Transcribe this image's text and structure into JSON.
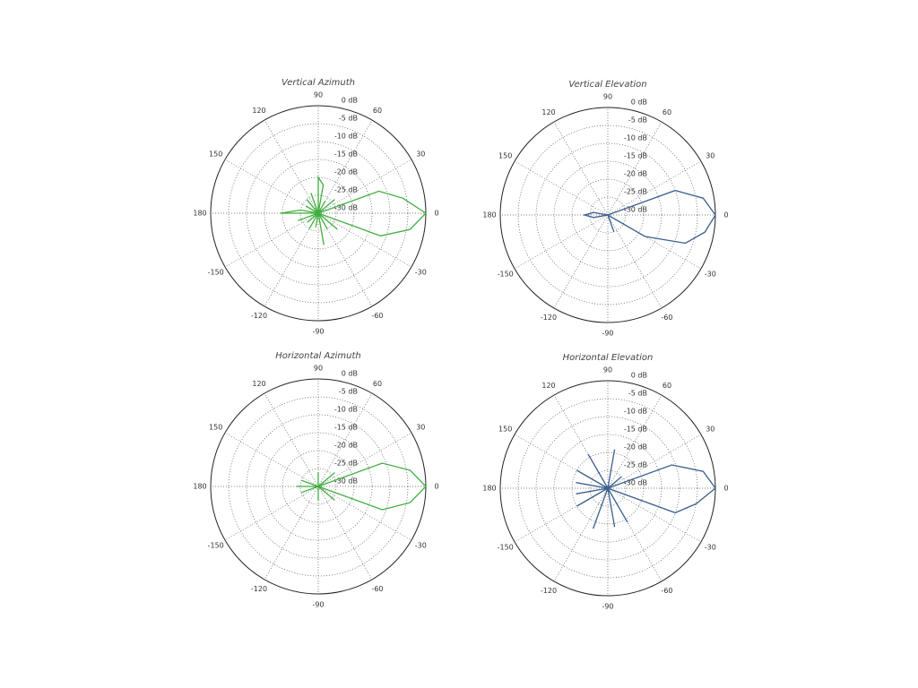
{
  "chart_data": [
    {
      "type": "polar",
      "title": "Vertical Azimuth",
      "color": "#3fae3f",
      "rlim": [
        -30,
        0
      ],
      "rticks": [
        {
          "value": 0,
          "label": "0 dB"
        },
        {
          "value": -5,
          "label": "-5 dB"
        },
        {
          "value": -10,
          "label": "-10 dB"
        },
        {
          "value": -15,
          "label": "-15 dB"
        },
        {
          "value": -20,
          "label": "-20 dB"
        },
        {
          "value": -25,
          "label": "-25 dB"
        },
        {
          "value": -30,
          "label": "-30 dB"
        }
      ],
      "thetaticks": [
        0,
        30,
        60,
        90,
        120,
        150,
        180,
        -150,
        -120,
        -90,
        -60,
        -30
      ],
      "theta": [
        -180,
        -170,
        -160,
        -150,
        -140,
        -130,
        -120,
        -110,
        -100,
        -90,
        -80,
        -70,
        -60,
        -50,
        -40,
        -30,
        -20,
        -10,
        0,
        10,
        20,
        30,
        40,
        50,
        60,
        70,
        80,
        90,
        100,
        110,
        120,
        130,
        140,
        150,
        160,
        170
      ],
      "values": [
        -19.5,
        -30,
        -24,
        -30,
        -26,
        -30,
        -25,
        -30,
        -26,
        -30,
        -21,
        -30,
        -25,
        -30,
        -23,
        -30,
        -11.5,
        -4,
        0,
        -6,
        -12,
        -30,
        -24,
        -30,
        -26,
        -30,
        -22,
        -20,
        -30,
        -24,
        -30,
        -25,
        -30,
        -26,
        -30,
        -25
      ]
    },
    {
      "type": "polar",
      "title": "Vertical Elevation",
      "color": "#3a5f8f",
      "rlim": [
        -30,
        0
      ],
      "rticks": [
        {
          "value": 0,
          "label": "0 dB"
        },
        {
          "value": -5,
          "label": "-5 dB"
        },
        {
          "value": -10,
          "label": "-10 dB"
        },
        {
          "value": -15,
          "label": "-15 dB"
        },
        {
          "value": -20,
          "label": "-20 dB"
        },
        {
          "value": -25,
          "label": "-25 dB"
        },
        {
          "value": -30,
          "label": "-30 dB"
        }
      ],
      "thetaticks": [
        0,
        30,
        60,
        90,
        120,
        150,
        180,
        -150,
        -120,
        -90,
        -60,
        -30
      ],
      "theta": [
        -180,
        -170,
        -160,
        -150,
        -140,
        -130,
        -120,
        -110,
        -100,
        -90,
        -80,
        -70,
        -60,
        -50,
        -40,
        -30,
        -20,
        -10,
        0,
        10,
        20,
        30,
        40,
        50,
        60,
        70,
        80,
        90,
        100,
        110,
        120,
        130,
        140,
        150,
        160,
        170
      ],
      "values": [
        -23.5,
        -26,
        -30,
        -30,
        -30,
        -30,
        -30,
        -30,
        -30,
        -30,
        -30,
        -25,
        -30,
        -30,
        -30,
        -18,
        -7,
        -2.5,
        0,
        -3,
        -10,
        -30,
        -30,
        -30,
        -30,
        -30,
        -30,
        -30,
        -30,
        -30,
        -30,
        -30,
        -30,
        -30,
        -30,
        -26
      ]
    },
    {
      "type": "polar",
      "title": "Horizontal Azimuth",
      "color": "#3fae3f",
      "rlim": [
        -30,
        0
      ],
      "rticks": [
        {
          "value": 0,
          "label": "0 dB"
        },
        {
          "value": -5,
          "label": "-5 dB"
        },
        {
          "value": -10,
          "label": "-10 dB"
        },
        {
          "value": -15,
          "label": "-15 dB"
        },
        {
          "value": -20,
          "label": "-20 dB"
        },
        {
          "value": -25,
          "label": "-25 dB"
        },
        {
          "value": -30,
          "label": "-30 dB"
        }
      ],
      "thetaticks": [
        0,
        30,
        60,
        90,
        120,
        150,
        180,
        -150,
        -120,
        -90,
        -60,
        -30
      ],
      "theta": [
        -180,
        -170,
        -160,
        -150,
        -140,
        -130,
        -120,
        -110,
        -100,
        -90,
        -80,
        -70,
        -60,
        -50,
        -40,
        -30,
        -20,
        -10,
        0,
        10,
        20,
        30,
        40,
        50,
        60,
        70,
        80,
        90,
        100,
        110,
        120,
        130,
        140,
        150,
        160,
        170
      ],
      "values": [
        -24,
        -30,
        -25,
        -30,
        -30,
        -30,
        -30,
        -30,
        -30,
        -26,
        -30,
        -30,
        -30,
        -30,
        -24,
        -30,
        -11,
        -4,
        0,
        -4,
        -11,
        -30,
        -24,
        -30,
        -30,
        -30,
        -30,
        -26,
        -30,
        -30,
        -30,
        -30,
        -30,
        -30,
        -25,
        -30
      ]
    },
    {
      "type": "polar",
      "title": "Horizontal Elevation",
      "color": "#3a5f8f",
      "rlim": [
        -30,
        0
      ],
      "rticks": [
        {
          "value": 0,
          "label": "0 dB"
        },
        {
          "value": -5,
          "label": "-5 dB"
        },
        {
          "value": -10,
          "label": "-10 dB"
        },
        {
          "value": -15,
          "label": "-15 dB"
        },
        {
          "value": -20,
          "label": "-20 dB"
        },
        {
          "value": -25,
          "label": "-25 dB"
        },
        {
          "value": -30,
          "label": "-30 dB"
        }
      ],
      "thetaticks": [
        0,
        30,
        60,
        90,
        120,
        150,
        180,
        -150,
        -120,
        -90,
        -60,
        -30
      ],
      "theta": [
        -180,
        -170,
        -160,
        -150,
        -140,
        -130,
        -120,
        -110,
        -100,
        -90,
        -80,
        -70,
        -60,
        -50,
        -40,
        -30,
        -20,
        -10,
        0,
        10,
        20,
        30,
        40,
        50,
        60,
        70,
        80,
        90,
        100,
        110,
        120,
        130,
        140,
        150,
        160,
        170
      ],
      "values": [
        -30,
        -21,
        -30,
        -20,
        -30,
        -30,
        -30,
        -18,
        -30,
        -30,
        -19,
        -30,
        -19,
        -30,
        -30,
        -30,
        -10,
        -5,
        0,
        -3,
        -11,
        -30,
        -25,
        -30,
        -30,
        -30,
        -19,
        -30,
        -30,
        -30,
        -19,
        -30,
        -30,
        -20,
        -30,
        -21
      ]
    }
  ]
}
